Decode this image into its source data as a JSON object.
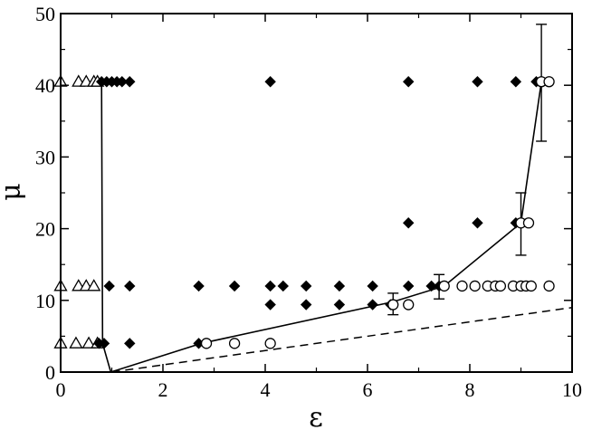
{
  "chart_data": {
    "type": "scatter",
    "title": "",
    "xlabel": "ε",
    "ylabel": "μ",
    "xlim": [
      0,
      10
    ],
    "ylim": [
      0,
      50
    ],
    "xticks": [
      "0",
      "2",
      "4",
      "6",
      "8",
      "10"
    ],
    "yticks": [
      "0",
      "10",
      "20",
      "30",
      "40",
      "50"
    ],
    "grid": false,
    "legend": "none",
    "colors": {
      "axis": "#000000",
      "marker": "#000000",
      "background": "#ffffff"
    },
    "series": [
      {
        "marker": "triangle-open",
        "points": [
          [
            0.0,
            40.5
          ],
          [
            0.35,
            40.5
          ],
          [
            0.5,
            40.5
          ],
          [
            0.65,
            40.5
          ],
          [
            0.72,
            40.5
          ],
          [
            0.0,
            12.0
          ],
          [
            0.35,
            12.0
          ],
          [
            0.5,
            12.0
          ],
          [
            0.65,
            12.0
          ],
          [
            0.0,
            4.0
          ],
          [
            0.3,
            4.0
          ],
          [
            0.55,
            4.0
          ],
          [
            0.72,
            4.0
          ]
        ]
      },
      {
        "marker": "diamond-filled",
        "points": [
          [
            0.8,
            40.5
          ],
          [
            0.9,
            40.5
          ],
          [
            1.0,
            40.5
          ],
          [
            1.1,
            40.5
          ],
          [
            1.2,
            40.5
          ],
          [
            1.35,
            40.5
          ],
          [
            4.1,
            40.5
          ],
          [
            6.8,
            40.5
          ],
          [
            8.15,
            40.5
          ],
          [
            8.9,
            40.5
          ],
          [
            9.3,
            40.5
          ],
          [
            6.8,
            20.8
          ],
          [
            8.15,
            20.8
          ],
          [
            8.9,
            20.8
          ],
          [
            0.95,
            12.0
          ],
          [
            1.35,
            12.0
          ],
          [
            2.7,
            12.0
          ],
          [
            3.4,
            12.0
          ],
          [
            4.1,
            12.0
          ],
          [
            4.35,
            12.0
          ],
          [
            4.8,
            12.0
          ],
          [
            5.45,
            12.0
          ],
          [
            6.1,
            12.0
          ],
          [
            6.8,
            12.0
          ],
          [
            7.25,
            12.0
          ],
          [
            7.4,
            12.0
          ],
          [
            4.1,
            9.4
          ],
          [
            4.8,
            9.4
          ],
          [
            5.45,
            9.4
          ],
          [
            6.1,
            9.4
          ],
          [
            6.45,
            9.4
          ],
          [
            0.75,
            4.0
          ],
          [
            0.85,
            4.0
          ],
          [
            1.35,
            4.0
          ],
          [
            2.7,
            4.0
          ]
        ]
      },
      {
        "marker": "circle-open",
        "points": [
          [
            9.4,
            40.5
          ],
          [
            9.55,
            40.5
          ],
          [
            9.0,
            20.8
          ],
          [
            9.15,
            20.8
          ],
          [
            7.5,
            12.0
          ],
          [
            7.85,
            12.0
          ],
          [
            8.1,
            12.0
          ],
          [
            8.35,
            12.0
          ],
          [
            8.5,
            12.0
          ],
          [
            8.6,
            12.0
          ],
          [
            8.85,
            12.0
          ],
          [
            9.0,
            12.0
          ],
          [
            9.1,
            12.0
          ],
          [
            9.2,
            12.0
          ],
          [
            9.55,
            12.0
          ],
          [
            6.5,
            9.4
          ],
          [
            6.8,
            9.4
          ],
          [
            2.85,
            4.0
          ],
          [
            3.4,
            4.0
          ],
          [
            4.1,
            4.0
          ]
        ]
      }
    ],
    "boundary_line": {
      "style": "solid",
      "x": [
        0.8,
        0.82,
        0.98,
        2.75,
        6.5,
        7.5,
        9.0,
        9.4
      ],
      "y": [
        40.5,
        4.0,
        0.0,
        4.0,
        9.8,
        12.0,
        20.8,
        40.5
      ]
    },
    "reference_line": {
      "style": "dashed",
      "x": [
        1.0,
        10.0
      ],
      "y": [
        0.0,
        9.0
      ]
    },
    "error_bars": [
      {
        "x": 6.5,
        "y": 9.8,
        "low": 8.0,
        "high": 11.0
      },
      {
        "x": 7.4,
        "y": 12.0,
        "low": 10.2,
        "high": 13.6
      },
      {
        "x": 9.0,
        "y": 20.8,
        "low": 16.3,
        "high": 25.0
      },
      {
        "x": 9.4,
        "y": 40.5,
        "low": 32.2,
        "high": 48.5
      }
    ]
  }
}
